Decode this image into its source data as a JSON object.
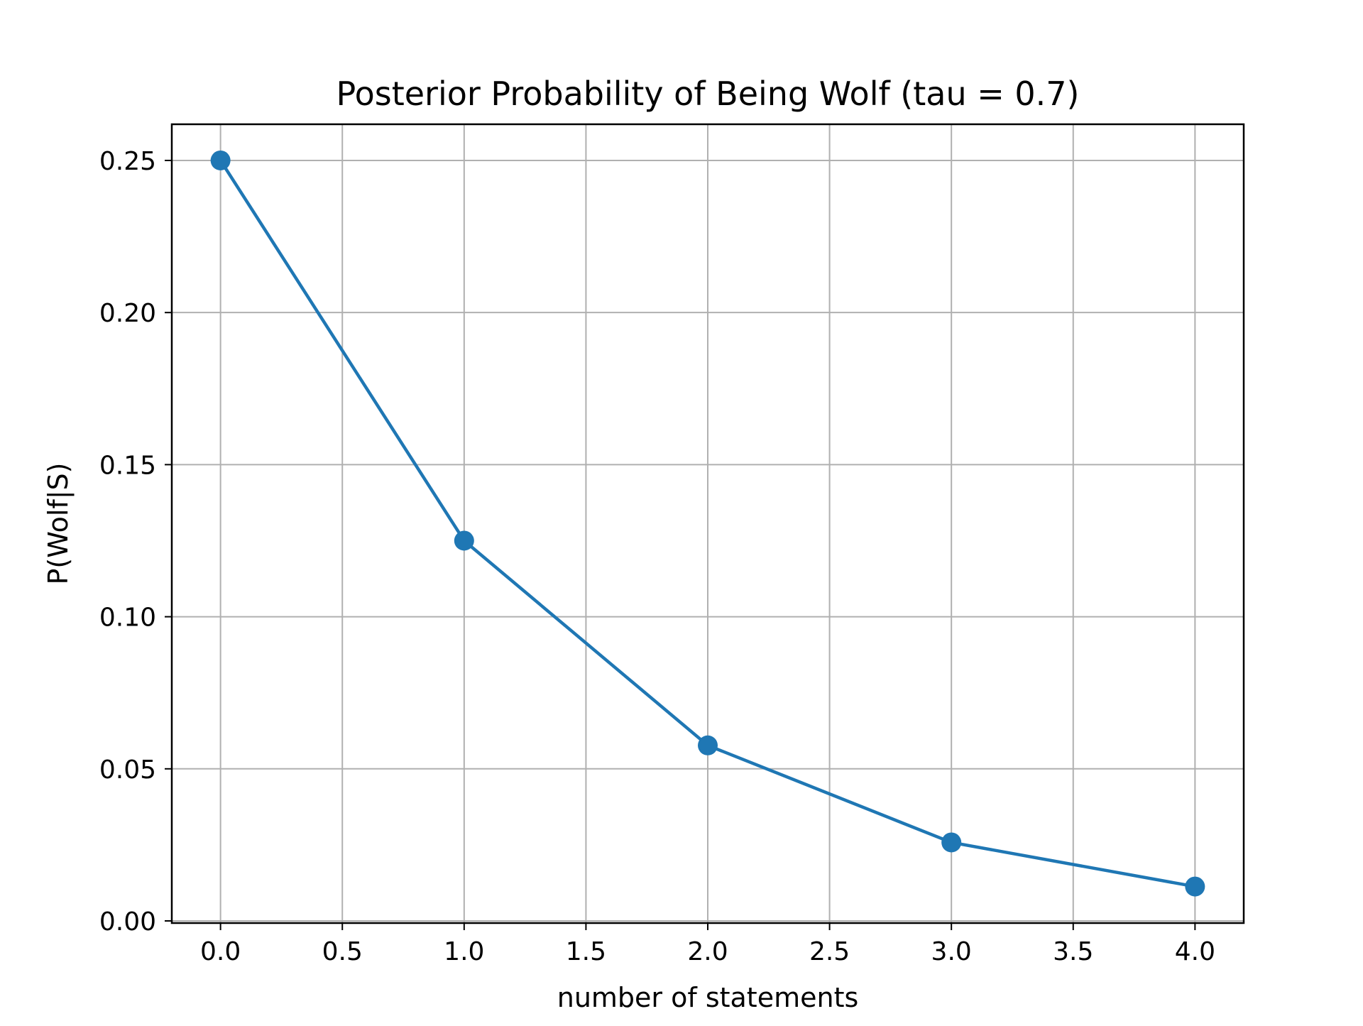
{
  "chart_data": {
    "type": "line",
    "title": "Posterior Probability of Being Wolf (tau = 0.7)",
    "xlabel": "number of statements",
    "ylabel": "P(Wolf|S)",
    "x": [
      0,
      1,
      2,
      3,
      4
    ],
    "series": [
      {
        "values": [
          0.25,
          0.125,
          0.0577,
          0.0258,
          0.0113
        ],
        "color": "#1f77b4",
        "marker": "circle"
      }
    ],
    "xlim": [
      -0.2,
      4.2
    ],
    "ylim": [
      -0.0007,
      0.2619
    ],
    "xticks": [
      0.0,
      0.5,
      1.0,
      1.5,
      2.0,
      2.5,
      3.0,
      3.5,
      4.0
    ],
    "xtick_labels": [
      "0.0",
      "0.5",
      "1.0",
      "1.5",
      "2.0",
      "2.5",
      "3.0",
      "3.5",
      "4.0"
    ],
    "yticks": [
      0.0,
      0.05,
      0.1,
      0.15,
      0.2,
      0.25
    ],
    "ytick_labels": [
      "0.00",
      "0.05",
      "0.10",
      "0.15",
      "0.20",
      "0.25"
    ],
    "grid": true,
    "grid_color": "#b0b0b0",
    "legend": false
  }
}
